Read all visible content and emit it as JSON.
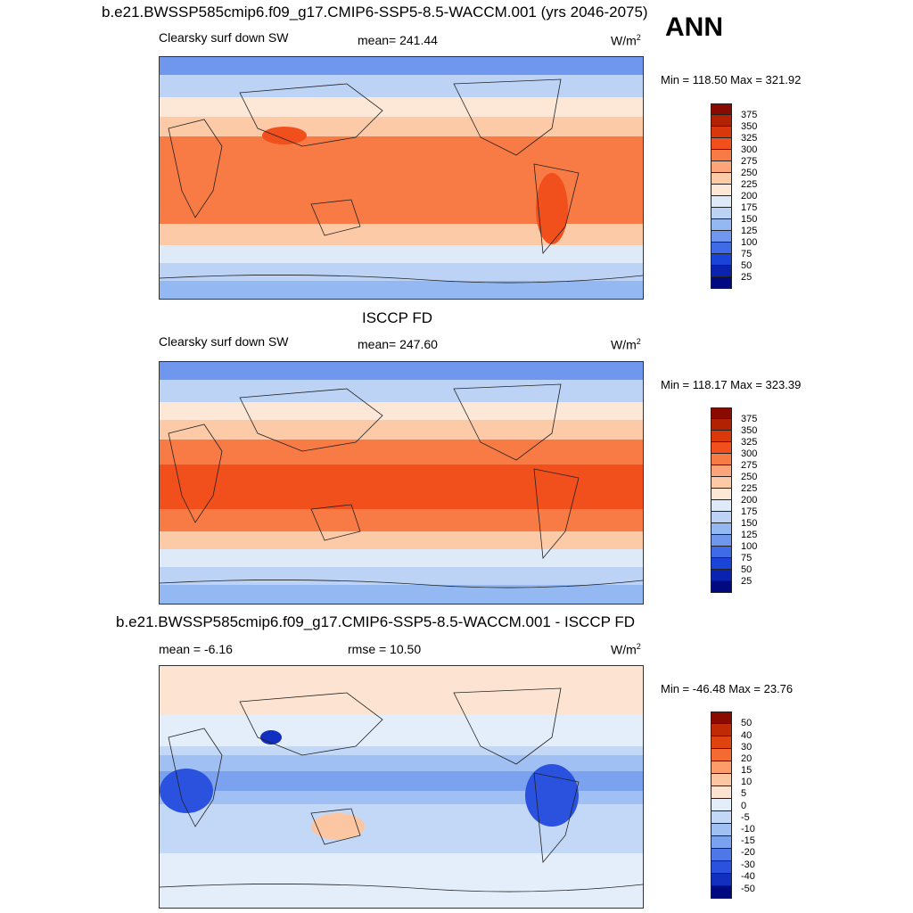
{
  "main_title": "b.e21.BWSSP585cmip6.f09_g17.CMIP6-SSP5-8.5-WACCM.001 (yrs 2046-2075)",
  "season": "ANN",
  "panels": [
    {
      "id": "model",
      "heading": "",
      "variable": "Clearsky surf down SW",
      "stat_label": "mean= 241.44",
      "units_base": "W/m",
      "units_exp": "2",
      "minmax": "Min = 118.50 Max = 321.92",
      "colorbar_levels": [
        "375",
        "350",
        "325",
        "300",
        "275",
        "250",
        "225",
        "200",
        "175",
        "150",
        "125",
        "100",
        "75",
        "50",
        "25"
      ]
    },
    {
      "id": "obs",
      "heading": "ISCCP FD",
      "variable": "Clearsky surf down SW",
      "stat_label": "mean= 247.60",
      "units_base": "W/m",
      "units_exp": "2",
      "minmax": "Min = 118.17 Max = 323.39",
      "colorbar_levels": [
        "375",
        "350",
        "325",
        "300",
        "275",
        "250",
        "225",
        "200",
        "175",
        "150",
        "125",
        "100",
        "75",
        "50",
        "25"
      ]
    },
    {
      "id": "diff",
      "heading": "b.e21.BWSSP585cmip6.f09_g17.CMIP6-SSP5-8.5-WACCM.001 - ISCCP FD",
      "variable": "mean =  -6.16",
      "stat_label": "rmse =  10.50",
      "units_base": "W/m",
      "units_exp": "2",
      "minmax": "Min = -46.48 Max =  23.76",
      "colorbar_levels": [
        "50",
        "40",
        "30",
        "20",
        "15",
        "10",
        "5",
        "0",
        "-5",
        "-10",
        "-15",
        "-20",
        "-30",
        "-40",
        "-50"
      ]
    }
  ],
  "colors": {
    "abs_scale": [
      "#8b0a00",
      "#b22202",
      "#d8380a",
      "#f1501c",
      "#f87a45",
      "#fca57a",
      "#fdcaa8",
      "#fde8d8",
      "#dfeaf9",
      "#bcd3f6",
      "#94b8f2",
      "#6f97ee",
      "#3f6ae8",
      "#1a44d8",
      "#0a22b0",
      "#000a80"
    ],
    "diff_scale": [
      "#8b0a00",
      "#c02a04",
      "#e0440e",
      "#f56a32",
      "#fb9c6a",
      "#fdc6a2",
      "#fde4d2",
      "#e4eefb",
      "#c3d8f7",
      "#a0c0f3",
      "#7aa2ef",
      "#4e78e9",
      "#2a52de",
      "#1230bf",
      "#000a80"
    ]
  }
}
